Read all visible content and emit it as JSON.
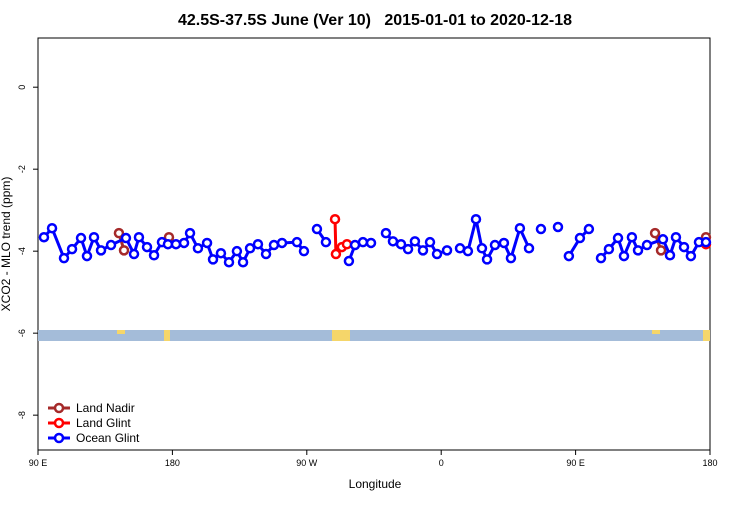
{
  "chart_data": {
    "type": "line",
    "title": "42.5S-37.5S June (Ver 10)   2015-01-01 to 2020-12-18",
    "x_label": "Longitude",
    "y_label": "XCO2 - MLO trend (ppm)",
    "xlim": [
      90,
      540
    ],
    "ylim": [
      -8.85,
      1.2
    ],
    "xticks": [
      {
        "value": 90,
        "label": "90 E"
      },
      180,
      {
        "value": 270,
        "label": "90 W"
      },
      {
        "value": 360,
        "label": "0"
      },
      {
        "value": 450,
        "label": "90 E"
      },
      {
        "value": 540,
        "label": "180"
      }
    ],
    "yticks": [
      -8,
      -6,
      -4,
      -2,
      0
    ],
    "legend": "bottom-left",
    "series": [
      {
        "name": "Land Nadir",
        "color": "#a52a2a",
        "x": [
          144.2,
          147.6,
          160,
          177.7,
          400,
          503.2,
          507.2,
          520,
          537.3
        ],
        "values": [
          -3.56,
          -3.98,
          null,
          -3.66,
          null,
          -3.56,
          -3.98,
          null,
          -3.66
        ]
      },
      {
        "name": "Land Glint",
        "color": "#ff0000",
        "x": [
          288.9,
          289.5,
          293.5,
          296.9,
          400,
          537.3
        ],
        "values": [
          -3.22,
          -4.07,
          -3.9,
          -3.83,
          null,
          -3.83
        ]
      },
      {
        "name": "Ocean Glint",
        "color": "#0000ff",
        "x": [
          94.0,
          99.4,
          107.4,
          112.8,
          118.8,
          122.8,
          127.5,
          132.2,
          138.9,
          148.9,
          154.3,
          157.6,
          163.0,
          167.7,
          173.0,
          177.0,
          182.4,
          187.8,
          191.8,
          197.1,
          203.2,
          207.2,
          212.5,
          217.9,
          223.2,
          227.3,
          232.0,
          237.3,
          242.7,
          248.0,
          253.4,
          263.4,
          268.1,
          272,
          276.8,
          282.8,
          290,
          298.2,
          302.3,
          307.6,
          313.0,
          318,
          323.0,
          327.7,
          333.1,
          337.8,
          342.4,
          347.8,
          352.5,
          357.2,
          363.9,
          368,
          372.6,
          377.9,
          383.3,
          387.3,
          390.7,
          396.0,
          402.0,
          406.7,
          412.7,
          418.8,
          422,
          426.8,
          432,
          438.2,
          442,
          445.5,
          452.9,
          458.9,
          463,
          467.0,
          472.3,
          478.4,
          482.4,
          487.7,
          491.8,
          497.8,
          508.5,
          513.2,
          517.2,
          522.6,
          527.2,
          532.6,
          537.3
        ],
        "values": [
          -3.66,
          -3.44,
          -4.17,
          -3.95,
          -3.68,
          -4.12,
          -3.66,
          -3.98,
          -3.85,
          -3.68,
          -4.07,
          -3.66,
          -3.9,
          -4.1,
          -3.78,
          -3.83,
          -3.83,
          -3.8,
          -3.56,
          -3.93,
          -3.8,
          -4.2,
          -4.05,
          -4.27,
          -4.0,
          -4.27,
          -3.93,
          -3.83,
          -4.07,
          -3.85,
          -3.8,
          -3.78,
          -4.0,
          null,
          -3.46,
          -3.78,
          null,
          -4.24,
          -3.85,
          -3.78,
          -3.8,
          null,
          -3.56,
          -3.76,
          -3.83,
          -3.95,
          -3.76,
          -3.98,
          -3.78,
          -4.07,
          -3.98,
          null,
          -3.93,
          -4.0,
          -3.22,
          -3.93,
          -4.2,
          -3.85,
          -3.8,
          -4.17,
          -3.44,
          -3.93,
          null,
          -3.46,
          null,
          -3.41,
          null,
          -4.12,
          -3.68,
          -3.46,
          null,
          -4.17,
          -3.95,
          -3.68,
          -4.12,
          -3.66,
          -3.98,
          -3.85,
          -3.71,
          -4.1,
          -3.66,
          -3.9,
          -4.12,
          -3.78,
          -3.78
        ]
      }
    ]
  }
}
